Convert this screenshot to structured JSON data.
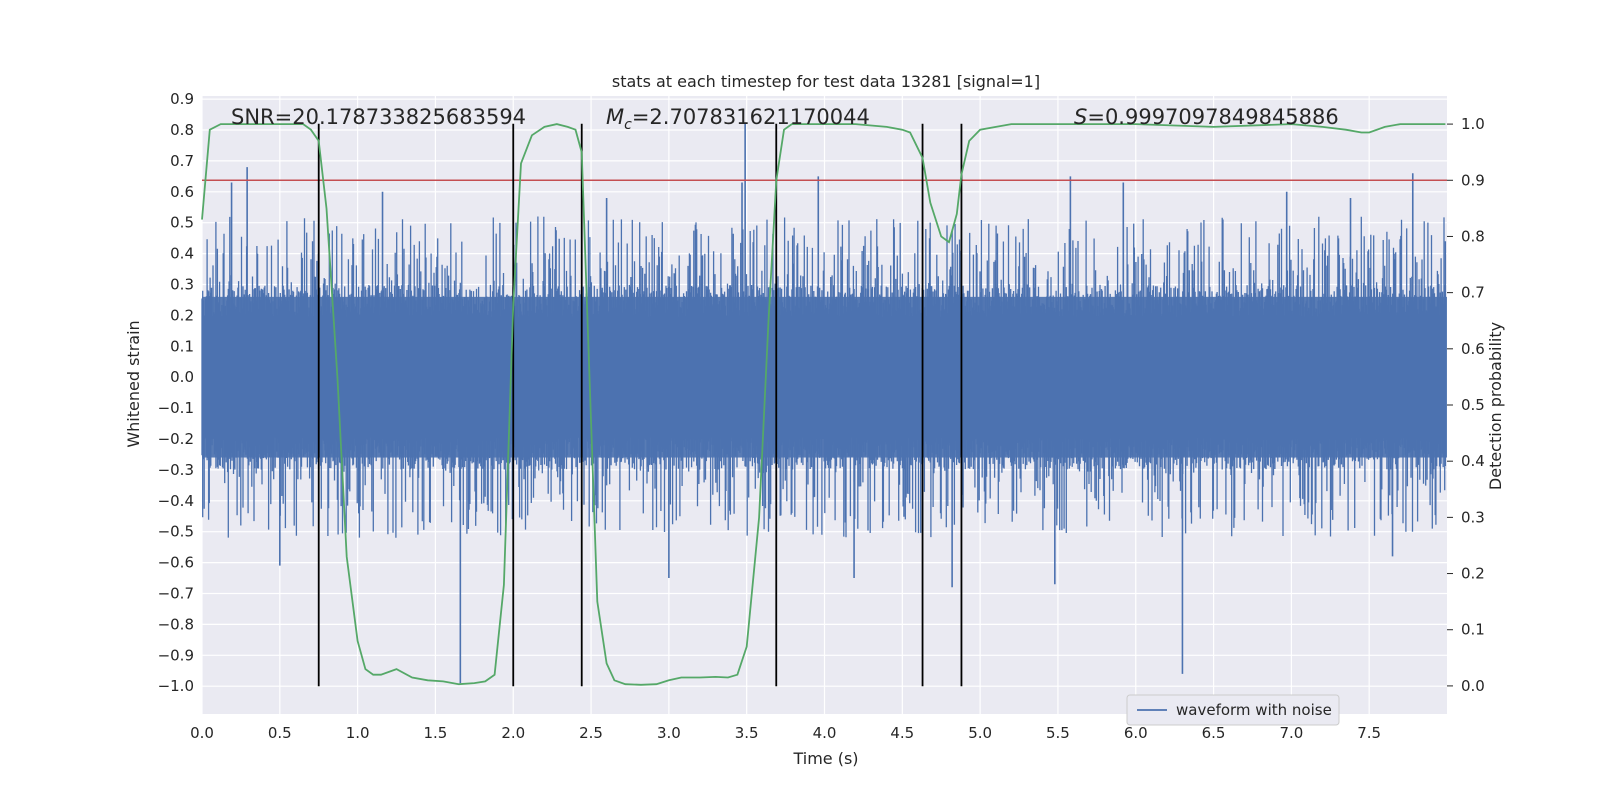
{
  "chart_data": {
    "type": "line",
    "title": "stats at each timestep for test data 13281 [signal=1]",
    "xlabel": "Time (s)",
    "ylabel": "Whitened strain",
    "y2label": "Detection probability",
    "xlim": [
      0.0,
      8.0
    ],
    "ylim": [
      -1.09,
      0.91
    ],
    "y2lim": [
      -0.05,
      1.05
    ],
    "xticks": [
      0.0,
      0.5,
      1.0,
      1.5,
      2.0,
      2.5,
      3.0,
      3.5,
      4.0,
      4.5,
      5.0,
      5.5,
      6.0,
      6.5,
      7.0,
      7.5
    ],
    "xtick_labels": [
      "0.0",
      "0.5",
      "1.0",
      "1.5",
      "2.0",
      "2.5",
      "3.0",
      "3.5",
      "4.0",
      "4.5",
      "5.0",
      "5.5",
      "6.0",
      "6.5",
      "7.0",
      "7.5"
    ],
    "yticks": [
      0.9,
      0.8,
      0.7,
      0.6,
      0.5,
      0.4,
      0.3,
      0.2,
      0.1,
      0.0,
      -0.1,
      -0.2,
      -0.3,
      -0.4,
      -0.5,
      -0.6,
      -0.7,
      -0.8,
      -0.9,
      -1.0
    ],
    "ytick_labels": [
      "0.9",
      "0.8",
      "0.7",
      "0.6",
      "0.5",
      "0.4",
      "0.3",
      "0.2",
      "0.1",
      "0.0",
      "−0.1",
      "−0.2",
      "−0.3",
      "−0.4",
      "−0.5",
      "−0.6",
      "−0.7",
      "−0.8",
      "−0.9",
      "−1.0"
    ],
    "y2ticks": [
      1.0,
      0.9,
      0.8,
      0.7,
      0.6,
      0.5,
      0.4,
      0.3,
      0.2,
      0.1,
      0.0
    ],
    "y2tick_labels": [
      "1.0",
      "0.9",
      "0.8",
      "0.7",
      "0.6",
      "0.5",
      "0.4",
      "0.3",
      "0.2",
      "0.1",
      "0.0"
    ],
    "threshold": 0.9,
    "vlines": [
      0.75,
      2.0,
      2.44,
      3.69,
      4.63,
      4.88
    ],
    "vline_ymin": -1.0,
    "vline_ymax": 0.82,
    "annotations": {
      "snr": "SNR=20.178733825683594",
      "mc_symbol": "M",
      "mc_sub": "c",
      "mc_value": "=2.707831621170044",
      "s_symbol": "S",
      "s_value": "=0.9997097849845886"
    },
    "legend": {
      "label": "waveform with noise",
      "position": "lower-right"
    },
    "waveform": {
      "name": "waveform with noise",
      "n": 1700,
      "core_amplitude": 0.26,
      "spikes": [
        {
          "x": 0.19,
          "y": 0.63
        },
        {
          "x": 0.29,
          "y": 0.68
        },
        {
          "x": 0.5,
          "y": -0.61
        },
        {
          "x": 1.16,
          "y": 0.6
        },
        {
          "x": 1.66,
          "y": -0.99
        },
        {
          "x": 3.0,
          "y": -0.65
        },
        {
          "x": 3.49,
          "y": 0.82
        },
        {
          "x": 3.47,
          "y": 0.63
        },
        {
          "x": 3.96,
          "y": 0.65
        },
        {
          "x": 4.19,
          "y": -0.65
        },
        {
          "x": 4.82,
          "y": -0.68
        },
        {
          "x": 5.58,
          "y": 0.65
        },
        {
          "x": 5.92,
          "y": 0.63
        },
        {
          "x": 6.3,
          "y": -0.96
        },
        {
          "x": 7.38,
          "y": 0.58
        },
        {
          "x": 7.78,
          "y": 0.66
        },
        {
          "x": 7.65,
          "y": -0.58
        },
        {
          "x": 5.48,
          "y": -0.67
        },
        {
          "x": 6.97,
          "y": 0.6
        },
        {
          "x": 2.6,
          "y": 0.58
        }
      ]
    },
    "probability": {
      "name": "detection probability",
      "x": [
        0.0,
        0.05,
        0.12,
        0.25,
        0.4,
        0.55,
        0.65,
        0.7,
        0.75,
        0.8,
        0.87,
        0.93,
        1.0,
        1.05,
        1.1,
        1.15,
        1.25,
        1.35,
        1.45,
        1.55,
        1.65,
        1.75,
        1.82,
        1.88,
        1.94,
        2.0,
        2.05,
        2.12,
        2.2,
        2.28,
        2.35,
        2.4,
        2.44,
        2.49,
        2.54,
        2.6,
        2.65,
        2.72,
        2.82,
        2.92,
        3.0,
        3.08,
        3.2,
        3.3,
        3.38,
        3.44,
        3.5,
        3.58,
        3.64,
        3.69,
        3.74,
        3.79,
        3.86,
        4.0,
        4.2,
        4.4,
        4.5,
        4.55,
        4.63,
        4.68,
        4.75,
        4.8,
        4.85,
        4.88,
        4.93,
        5.0,
        5.2,
        5.5,
        6.0,
        6.5,
        7.0,
        7.2,
        7.35,
        7.45,
        7.5,
        7.6,
        7.7,
        7.8,
        7.99
      ],
      "y": [
        0.83,
        0.99,
        1.0,
        1.0,
        1.0,
        1.0,
        1.0,
        0.99,
        0.97,
        0.85,
        0.55,
        0.23,
        0.08,
        0.03,
        0.02,
        0.02,
        0.03,
        0.015,
        0.01,
        0.008,
        0.003,
        0.005,
        0.008,
        0.02,
        0.18,
        0.68,
        0.93,
        0.98,
        0.995,
        1.0,
        0.995,
        0.99,
        0.95,
        0.55,
        0.15,
        0.04,
        0.01,
        0.003,
        0.002,
        0.003,
        0.01,
        0.015,
        0.015,
        0.016,
        0.015,
        0.02,
        0.07,
        0.3,
        0.65,
        0.9,
        0.99,
        1.0,
        1.0,
        1.0,
        1.0,
        0.995,
        0.99,
        0.985,
        0.94,
        0.86,
        0.8,
        0.79,
        0.84,
        0.91,
        0.97,
        0.99,
        1.0,
        1.0,
        1.0,
        0.995,
        1.0,
        0.995,
        0.99,
        0.985,
        0.985,
        0.995,
        1.0,
        1.0,
        1.0
      ]
    },
    "colors": {
      "background": "#eaeaf2",
      "grid": "#ffffff",
      "waveform": "#4c72b0",
      "probability": "#55a868",
      "threshold": "#c44e52",
      "vline": "#000000",
      "text": "#262626"
    }
  }
}
